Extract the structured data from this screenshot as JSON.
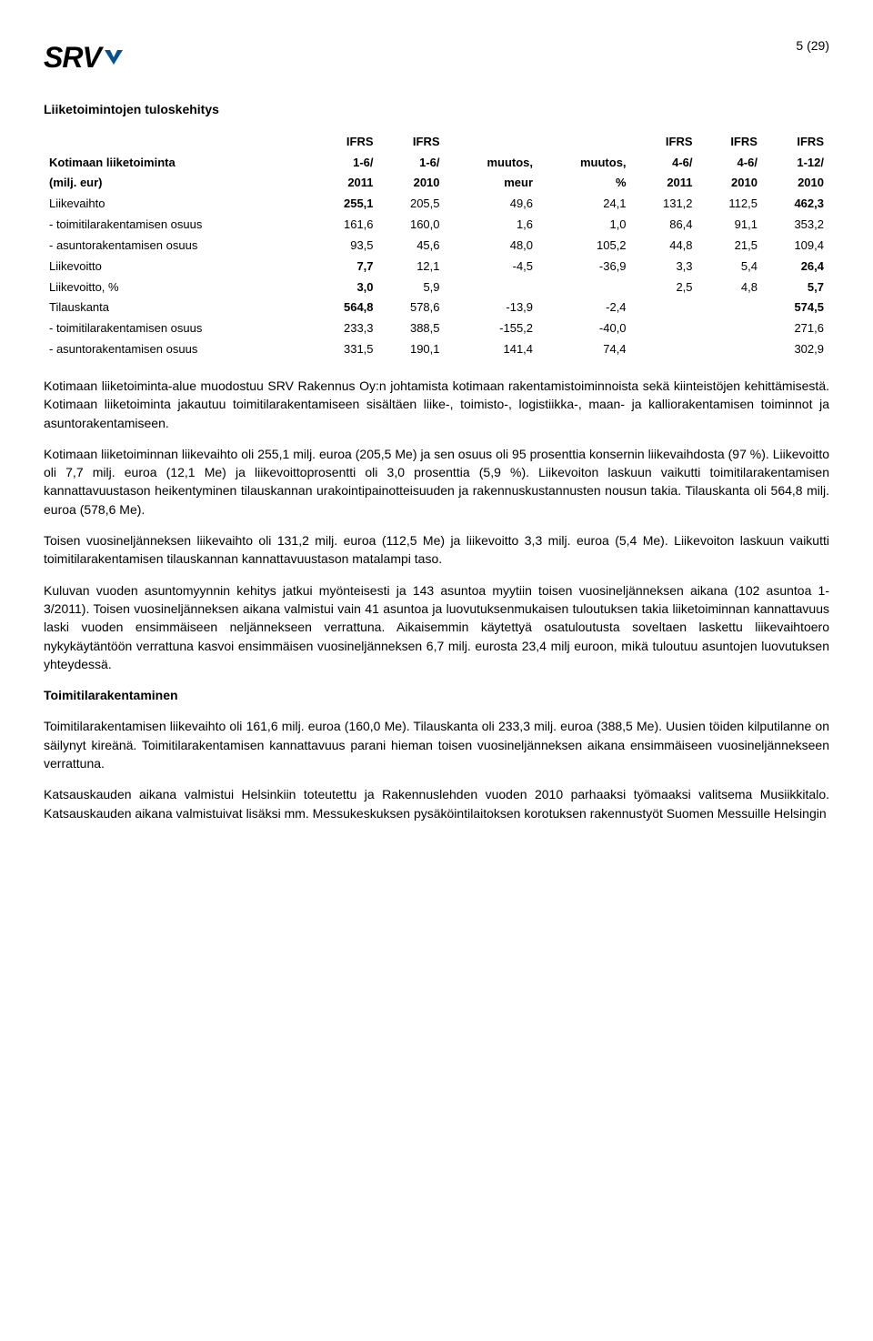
{
  "page_number": "5 (29)",
  "logo_text": "SRV",
  "logo_color": "#0a4f8f",
  "section_title": "Liiketoimintojen tuloskehitys",
  "table": {
    "header_rows": [
      [
        "",
        "IFRS",
        "IFRS",
        "",
        "",
        "IFRS",
        "IFRS",
        "IFRS"
      ],
      [
        "Kotimaan liiketoiminta",
        "1-6/",
        "1-6/",
        "muutos,",
        "muutos,",
        "4-6/",
        "4-6/",
        "1-12/"
      ],
      [
        "(milj. eur)",
        "2011",
        "2010",
        "meur",
        "%",
        "2011",
        "2010",
        "2010"
      ]
    ],
    "rows": [
      {
        "label": "Liikevaihto",
        "vals": [
          "255,1",
          "205,5",
          "49,6",
          "24,1",
          "131,2",
          "112,5",
          "462,3"
        ],
        "bold_cols": [
          0,
          6
        ],
        "bold_label": false
      },
      {
        "label": "- toimitilarakentamisen osuus",
        "vals": [
          "161,6",
          "160,0",
          "1,6",
          "1,0",
          "86,4",
          "91,1",
          "353,2"
        ],
        "bold_cols": [],
        "bold_label": false
      },
      {
        "label": "- asuntorakentamisen osuus",
        "vals": [
          "93,5",
          "45,6",
          "48,0",
          "105,2",
          "44,8",
          "21,5",
          "109,4"
        ],
        "bold_cols": [],
        "bold_label": false
      },
      {
        "label": "Liikevoitto",
        "vals": [
          "7,7",
          "12,1",
          "-4,5",
          "-36,9",
          "3,3",
          "5,4",
          "26,4"
        ],
        "bold_cols": [
          0,
          6
        ],
        "bold_label": false
      },
      {
        "label": "Liikevoitto, %",
        "vals": [
          "3,0",
          "5,9",
          "",
          "",
          "2,5",
          "4,8",
          "5,7"
        ],
        "bold_cols": [
          0,
          6
        ],
        "bold_label": false
      },
      {
        "label": "Tilauskanta",
        "vals": [
          "564,8",
          "578,6",
          "-13,9",
          "-2,4",
          "",
          "",
          "574,5"
        ],
        "bold_cols": [
          0,
          6
        ],
        "bold_label": false
      },
      {
        "label": "- toimitilarakentamisen osuus",
        "vals": [
          "233,3",
          "388,5",
          "-155,2",
          "-40,0",
          "",
          "",
          "271,6"
        ],
        "bold_cols": [],
        "bold_label": false
      },
      {
        "label": "- asuntorakentamisen osuus",
        "vals": [
          "331,5",
          "190,1",
          "141,4",
          "74,4",
          "",
          "",
          "302,9"
        ],
        "bold_cols": [],
        "bold_label": false
      }
    ],
    "header_bold_cols": [
      1,
      7
    ]
  },
  "paragraphs": [
    "Kotimaan liiketoiminta-alue muodostuu SRV Rakennus Oy:n johtamista kotimaan rakentamistoiminnoista sekä kiinteistöjen kehittämisestä. Kotimaan liiketoiminta jakautuu toimitilarakentamiseen sisältäen liike-, toimisto-, logistiikka-, maan- ja kalliorakentamisen toiminnot ja asuntorakentamiseen.",
    "Kotimaan liiketoiminnan liikevaihto oli 255,1 milj. euroa (205,5 Me) ja sen osuus oli 95 prosenttia konsernin liikevaihdosta (97 %). Liikevoitto oli 7,7 milj. euroa (12,1 Me) ja liikevoittoprosentti oli 3,0 prosenttia (5,9 %). Liikevoiton laskuun vaikutti toimitilarakentamisen kannattavuustason heikentyminen tilauskannan urakointipainotteisuuden ja rakennuskustannusten nousun takia. Tilauskanta oli 564,8 milj. euroa (578,6 Me).",
    "Toisen vuosineljänneksen liikevaihto oli 131,2 milj. euroa (112,5 Me) ja liikevoitto 3,3 milj. euroa (5,4 Me). Liikevoiton laskuun vaikutti toimitilarakentamisen tilauskannan kannattavuustason matalampi taso.",
    "Kuluvan vuoden asuntomyynnin kehitys jatkui myönteisesti ja 143 asuntoa myytiin toisen vuosineljänneksen aikana (102 asuntoa 1-3/2011). Toisen vuosineljänneksen aikana valmistui vain 41 asuntoa ja luovutuksenmukaisen tuloutuksen takia liiketoiminnan kannattavuus laski vuoden ensimmäiseen neljännekseen verrattuna. Aikaisemmin käytettyä osatuloutusta soveltaen laskettu liikevaihtoero nykykäytäntöön verrattuna kasvoi ensimmäisen vuosineljänneksen 6,7 milj. eurosta 23,4 milj euroon, mikä tuloutuu asuntojen luovutuksen yhteydessä."
  ],
  "subheading": "Toimitilarakentaminen",
  "paragraphs2": [
    "Toimitilarakentamisen liikevaihto oli 161,6 milj. euroa (160,0 Me). Tilauskanta oli 233,3 milj. euroa (388,5 Me). Uusien töiden kilputilanne on säilynyt kireänä. Toimitilarakentamisen kannattavuus parani hieman toisen vuosineljänneksen aikana ensimmäiseen vuosineljännekseen verrattuna.",
    "Katsauskauden aikana valmistui Helsinkiin toteutettu ja Rakennuslehden vuoden 2010 parhaaksi työmaaksi valitsema Musiikkitalo. Katsauskauden aikana valmistuivat lisäksi mm. Messukeskuksen pysäköintilaitoksen korotuksen rakennustyöt Suomen Messuille Helsingin"
  ]
}
